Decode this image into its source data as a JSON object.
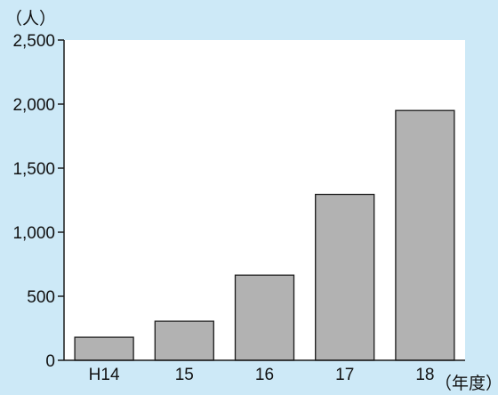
{
  "chart_data": {
    "type": "bar",
    "title": "",
    "ylabel": "（人）",
    "xlabel": "（年度）",
    "categories": [
      "H14",
      "15",
      "16",
      "17",
      "18"
    ],
    "values": [
      180,
      305,
      665,
      1295,
      1950
    ],
    "ylim": [
      0,
      2500
    ],
    "yticks": [
      0,
      500,
      1000,
      1500,
      2000,
      2500
    ],
    "ytick_labels": [
      "0",
      "500",
      "1,000",
      "1,500",
      "2,000",
      "2,500"
    ],
    "grid": false,
    "colors": {
      "background": "#cde9f7",
      "plot_area": "#ffffff",
      "bar_fill": "#b2b2b2",
      "bar_stroke": "#1a1a1a",
      "axis": "#1a1a1a"
    }
  }
}
